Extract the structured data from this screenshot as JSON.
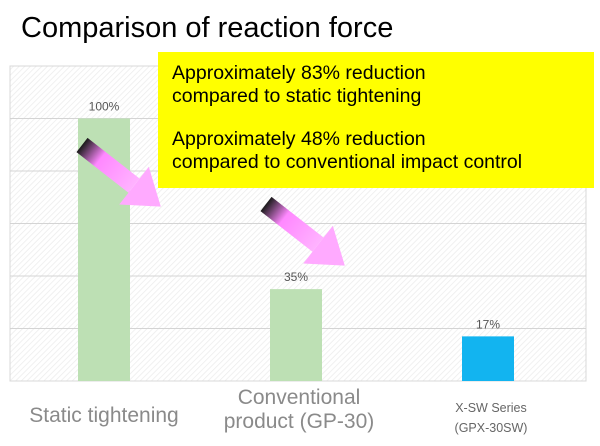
{
  "chart_data": {
    "type": "bar",
    "title": "Comparison of reaction force",
    "categories": [
      "Static tightening",
      "Conventional product (GP-30)",
      "X-SW Series (GPX-30SW)"
    ],
    "category_lines": [
      [
        "Static tightening"
      ],
      [
        "Conventional",
        "product (GP-30)"
      ],
      [
        "X-SW Series",
        "(GPX-30SW)"
      ]
    ],
    "values": [
      100,
      35,
      17
    ],
    "value_labels": [
      "100%",
      "35%",
      "17%"
    ],
    "bar_colors": [
      "#bde0b4",
      "#bde0b4",
      "#12b4f0"
    ],
    "ylim": [
      0,
      120
    ],
    "grid": true,
    "xlabel": "",
    "ylabel": ""
  },
  "callout": {
    "line1": "Approximately 83% reduction",
    "line2": "compared to static tightening",
    "line3": "Approximately 48% reduction",
    "line4": "compared to conventional impact control"
  },
  "colors": {
    "callout_bg": "#ffff00",
    "arrow": "#ff99ff",
    "arrow_dark": "#1a1a1a"
  }
}
